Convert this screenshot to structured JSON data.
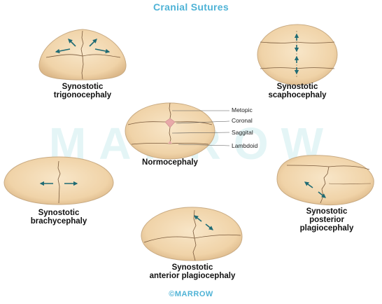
{
  "title": "Cranial Sutures",
  "watermark": "MARROW",
  "brand": "©MARROW",
  "colors": {
    "skull_fill": "#f2d9b3",
    "skull_edge": "#c9ab83",
    "suture": "#7a5a3c",
    "arrow": "#1f6b74",
    "fontanelle": "#e8a9a9",
    "title": "#4fb3d6"
  },
  "skulls": [
    {
      "id": "trigonocephaly",
      "caption": "Synostotic\ntrigonocephaly"
    },
    {
      "id": "scaphocephaly",
      "caption": "Synostotic\nscaphocephaly"
    },
    {
      "id": "normocephaly",
      "caption": "Normocephaly"
    },
    {
      "id": "brachycephaly",
      "caption": "Synostotic\nbrachycephaly"
    },
    {
      "id": "posterior-plagiocephaly",
      "caption": "Synostotic\nposterior\nplagiocephaly"
    },
    {
      "id": "anterior-plagiocephaly",
      "caption": "Synostotic\nanterior plagiocephaly"
    }
  ],
  "suture_labels": {
    "metopic": "Metopic",
    "coronal": "Coronal",
    "saggital": "Saggital",
    "lambdoid": "Lambdoid"
  }
}
